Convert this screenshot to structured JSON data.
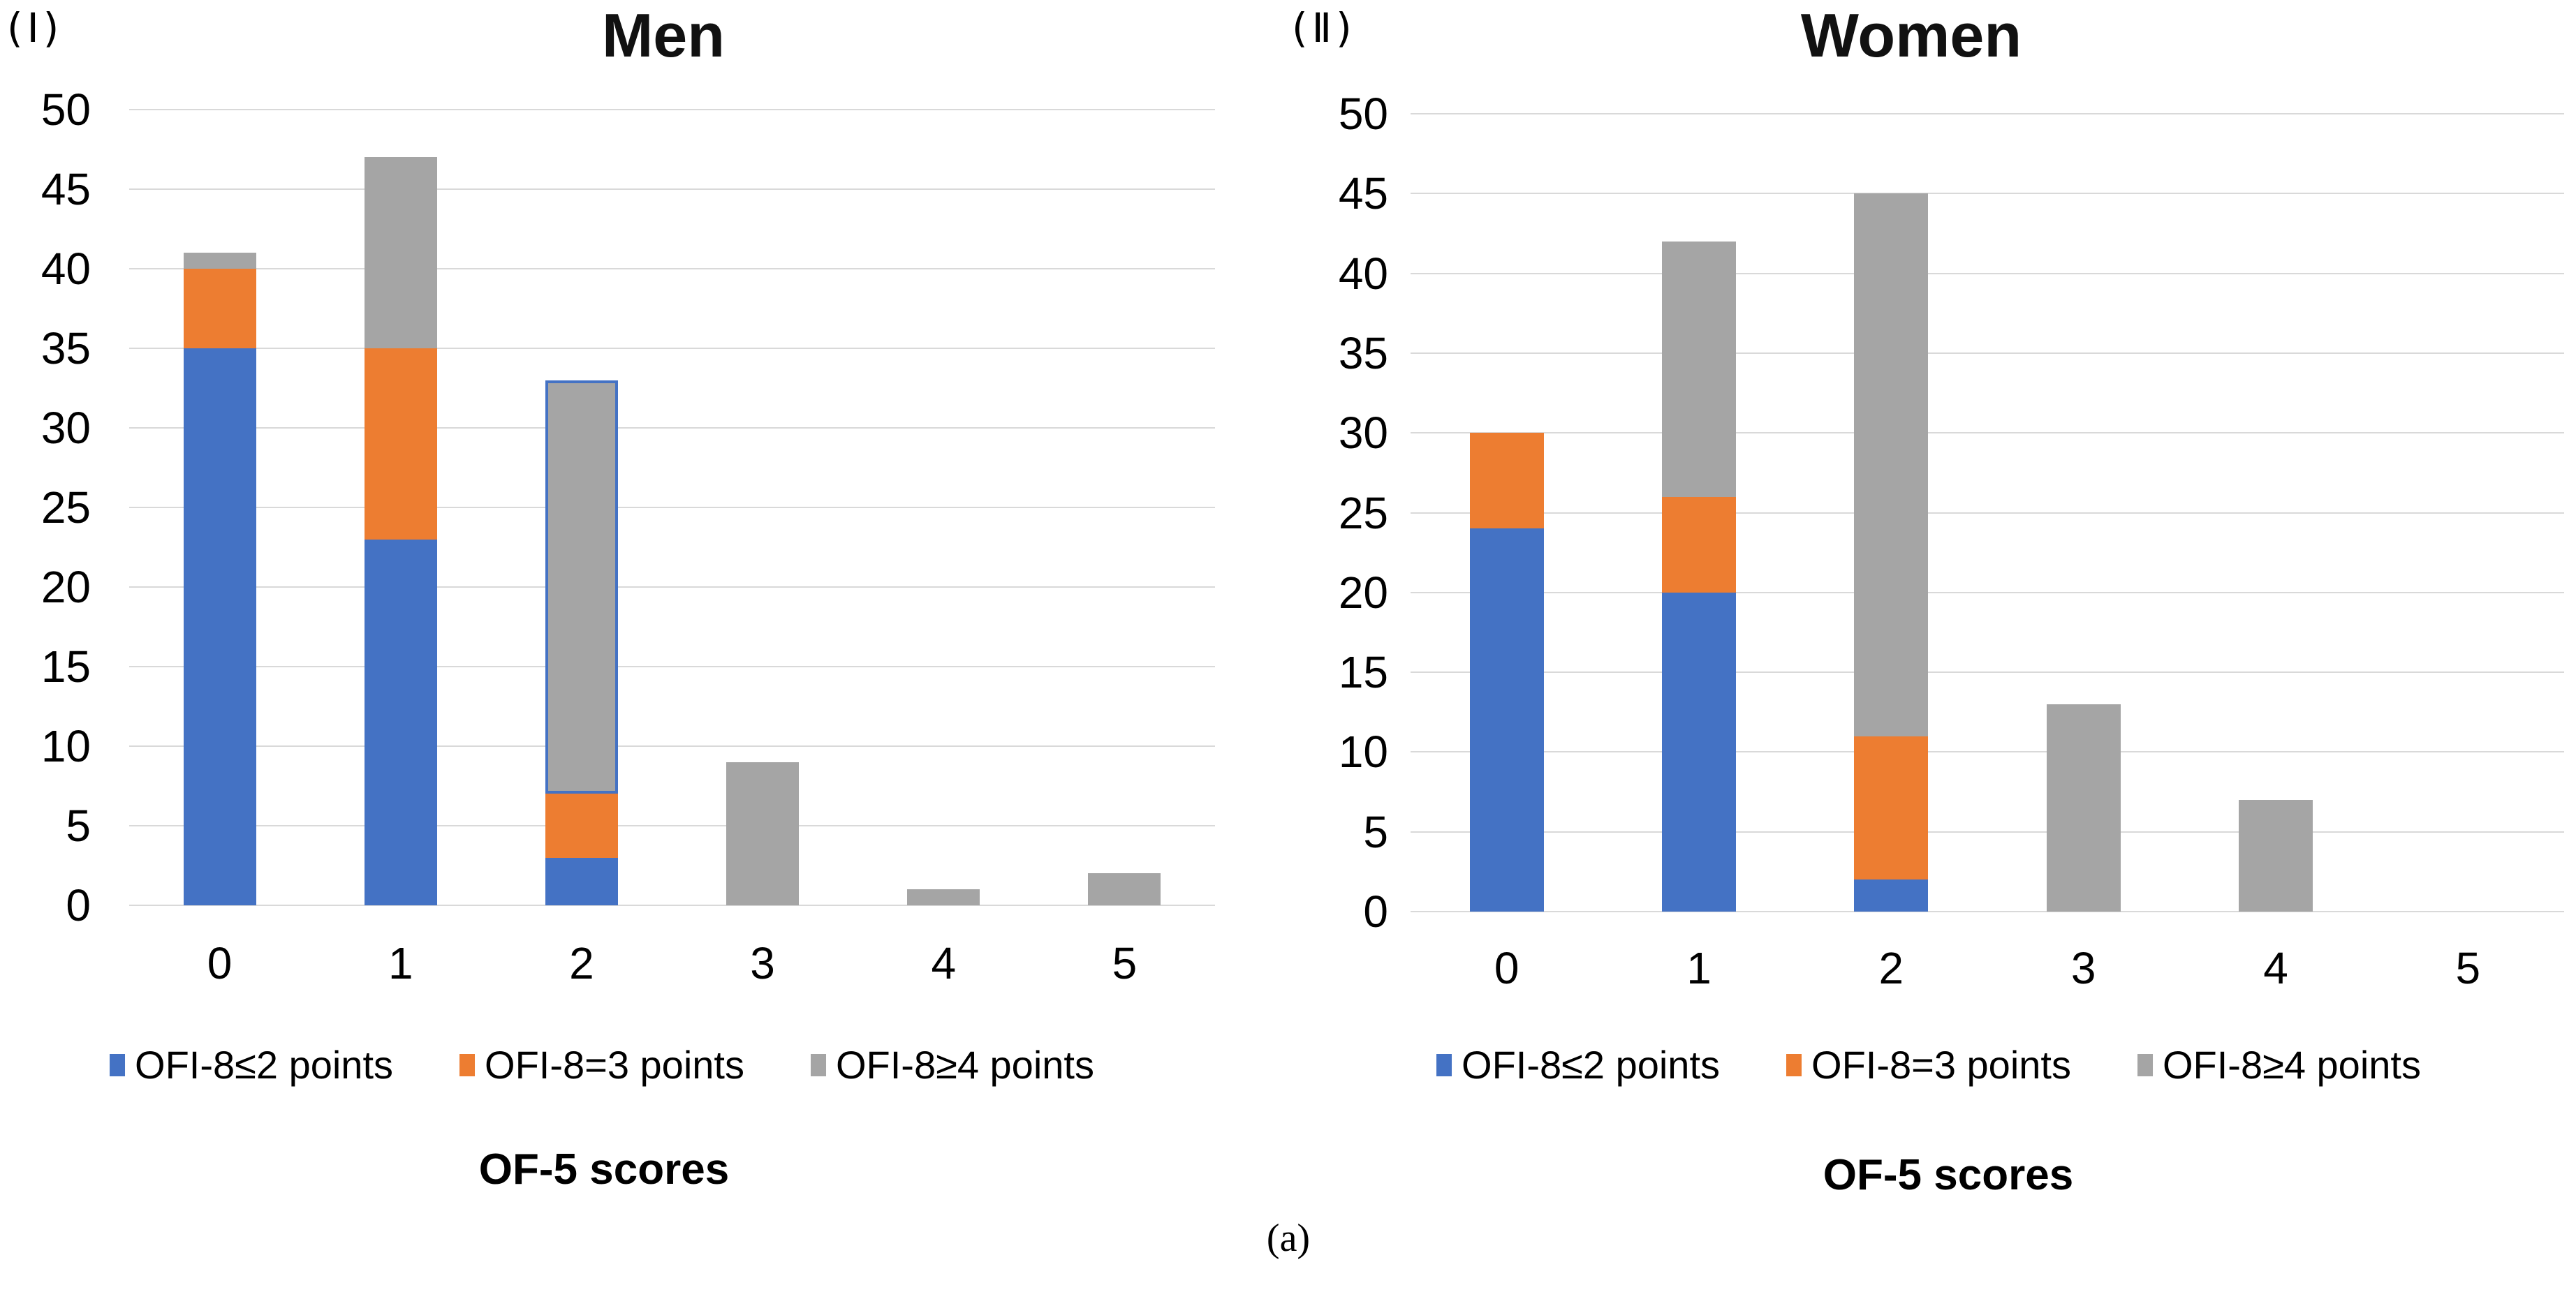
{
  "figure_label": "(a)",
  "colors": {
    "blue": "#4472C4",
    "orange": "#ED7D31",
    "gray": "#A5A5A5",
    "gridline": "#D9D9D9",
    "highlight_border": "#4472C4",
    "text": "#000000"
  },
  "chart_data": [
    {
      "type": "bar",
      "stacked": true,
      "panel_label": "(Ⅰ)",
      "title": "Men",
      "xlabel": "OF-5 scores",
      "ylim": [
        0,
        50
      ],
      "ytick_step": 5,
      "yticks": [
        0,
        5,
        10,
        15,
        20,
        25,
        30,
        35,
        40,
        45,
        50
      ],
      "grid": true,
      "legend_position": "bottom",
      "categories": [
        "0",
        "1",
        "2",
        "3",
        "4",
        "5"
      ],
      "series": [
        {
          "name": "OFI-8≤2 points",
          "color": "blue",
          "values": [
            35,
            23,
            3,
            0,
            0,
            0
          ]
        },
        {
          "name": "OFI-8=3 points",
          "color": "orange",
          "values": [
            5,
            12,
            4,
            0,
            0,
            0
          ]
        },
        {
          "name": "OFI-8≥4 points",
          "color": "gray",
          "values": [
            1,
            12,
            26,
            9,
            1,
            2
          ]
        }
      ],
      "highlight": {
        "category": "2",
        "series": "OFI-8≥4 points",
        "note": "gray segment outlined in blue"
      }
    },
    {
      "type": "bar",
      "stacked": true,
      "panel_label": "(Ⅱ)",
      "title": "Women",
      "xlabel": "OF-5 scores",
      "ylim": [
        0,
        50
      ],
      "ytick_step": 5,
      "yticks": [
        0,
        5,
        10,
        15,
        20,
        25,
        30,
        35,
        40,
        45,
        50
      ],
      "grid": true,
      "legend_position": "bottom",
      "categories": [
        "0",
        "1",
        "2",
        "3",
        "4",
        "5"
      ],
      "series": [
        {
          "name": "OFI-8≤2 points",
          "color": "blue",
          "values": [
            24,
            20,
            2,
            0,
            0,
            0
          ]
        },
        {
          "name": "OFI-8=3 points",
          "color": "orange",
          "values": [
            6,
            6,
            9,
            0,
            0,
            0
          ]
        },
        {
          "name": "OFI-8≥4 points",
          "color": "gray",
          "values": [
            0,
            16,
            34,
            13,
            7,
            0
          ]
        }
      ]
    }
  ]
}
